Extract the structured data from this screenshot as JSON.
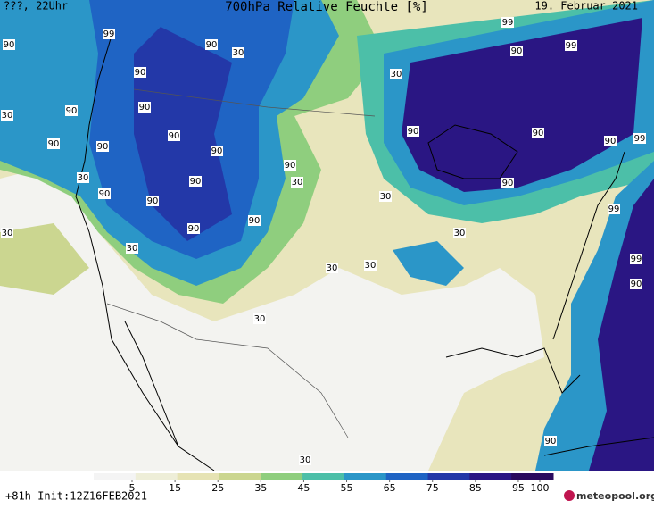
{
  "header": {
    "left": "???, 22Uhr",
    "title": "700hPa Relative Feuchte [%]",
    "date": "19. Februar 2021"
  },
  "map": {
    "contour_labels": [
      90,
      90,
      90,
      90,
      90,
      90,
      90,
      90,
      90,
      90,
      90,
      90,
      90,
      90,
      90,
      90,
      90,
      90,
      90,
      90,
      90,
      90,
      99,
      99,
      99,
      99,
      99,
      99,
      30,
      30,
      30,
      30,
      30,
      30,
      30,
      30,
      30,
      30,
      30,
      30,
      30
    ]
  },
  "colorbar": {
    "ticks": [
      5,
      15,
      25,
      35,
      45,
      55,
      65,
      75,
      85,
      95,
      100
    ],
    "colors": [
      "#f4f4f4",
      "#eeeed8",
      "#e6e3b4",
      "#cbd690",
      "#8fce7e",
      "#4cbfa8",
      "#2b96c8",
      "#1f64c4",
      "#2338a8",
      "#2a1683",
      "#2a0a5e"
    ]
  },
  "footer": {
    "run": "+81h Init:12Z16FEB2021",
    "logo": "meteopool.org"
  }
}
